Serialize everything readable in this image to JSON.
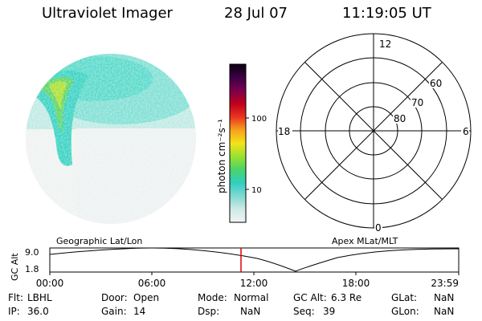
{
  "header": {
    "title": "Ultraviolet Imager",
    "date": "28 Jul 07",
    "time": "11:19:05 UT"
  },
  "colors": {
    "bar_gradient": [
      "#f2f4f4",
      "#cfe9e6",
      "#7fd9d0",
      "#2ecfc0",
      "#4ad36a",
      "#9be12f",
      "#f3e31a",
      "#f6a11a",
      "#ea3320",
      "#c1001a",
      "#7a004e",
      "#3b0046",
      "#0b0010"
    ],
    "orbit_marker": "#e00000"
  },
  "colorbar": {
    "unit_label": "photon cm⁻²s⁻¹",
    "ticks": [
      "100",
      "10"
    ]
  },
  "polar_grid": {
    "mlt_labels": {
      "top": "12",
      "left": "18",
      "right": "6",
      "bottom": "0"
    },
    "lat_labels": [
      "60",
      "70",
      "80"
    ]
  },
  "orbit_plot": {
    "left_label": "Geographic Lat/Lon",
    "right_label": "Apex MLat/MLT",
    "y_axis_label": "GC Alt",
    "y_ticks": [
      "9.0",
      "1.8"
    ],
    "x_ticks": [
      "00:00",
      "06:00",
      "12:00",
      "18:00",
      "23:59"
    ]
  },
  "footer": {
    "row1": [
      {
        "label": "Flt:",
        "value": "LBHL"
      },
      {
        "label": "Door:",
        "value": "Open"
      },
      {
        "label": "Mode:",
        "value": "Normal"
      },
      {
        "label": "GC Alt:",
        "value": "6.3 Re"
      },
      {
        "label": "GLat:",
        "value": "NaN"
      }
    ],
    "row2": [
      {
        "label": "IP:",
        "value": "36.0"
      },
      {
        "label": "Gain:",
        "value": "14"
      },
      {
        "label": "Dsp:",
        "value": "NaN"
      },
      {
        "label": "Seq:",
        "value": "39"
      },
      {
        "label": "GLon:",
        "value": "NaN"
      }
    ]
  }
}
